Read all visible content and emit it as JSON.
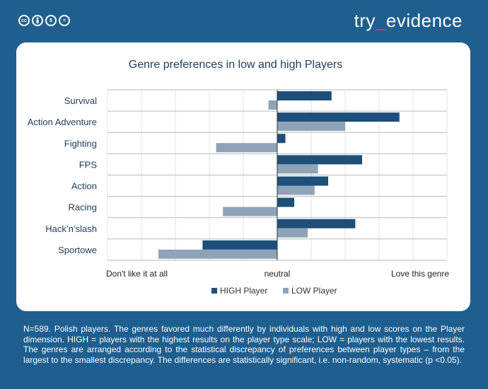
{
  "header": {
    "license_badges": [
      "cc",
      "by",
      "nc",
      "nd"
    ],
    "brand": {
      "part1": "try",
      "part2": "_",
      "part3": "evidence"
    }
  },
  "colors": {
    "background": "#1f5f8f",
    "high": "#1d4f79",
    "low": "#8fa3b8",
    "brand_underscore": "#e03a5a"
  },
  "chart_data": {
    "type": "bar",
    "orientation": "horizontal",
    "title": "Genre preferences in low and high Players",
    "categories": [
      "Survival",
      "Action Adventure",
      "Fighting",
      "FPS",
      "Action",
      "Racing",
      "Hack’n’slash",
      "Sportowe"
    ],
    "series": [
      {
        "name": "HIGH Player",
        "color": "#1d4f79",
        "values": [
          0.8,
          1.8,
          0.12,
          1.25,
          0.75,
          0.25,
          1.15,
          -1.1
        ]
      },
      {
        "name": "LOW Player",
        "color": "#8fa3b8",
        "values": [
          -0.13,
          1.0,
          -0.9,
          0.6,
          0.55,
          -0.8,
          0.45,
          -1.75
        ]
      }
    ],
    "xlim": [
      -2.5,
      2.5
    ],
    "x_tick_labels": [
      "Don't like it at all",
      "neutral",
      "Love this genre"
    ],
    "grid": true,
    "legend": "bottom"
  },
  "footer": {
    "caption": "N=589. Polish players. The genres favored much differently by individuals with high and low scores on the Player dimension. HIGH = players with the highest results on the player type scale; LOW = players with the lowest results. The genres are arranged according to the statistical discrepancy of preferences between player types – from the largest to the smallest discrepancy. The differences are statistically significant, i.e. non-random, systematic (p <0.05)."
  }
}
